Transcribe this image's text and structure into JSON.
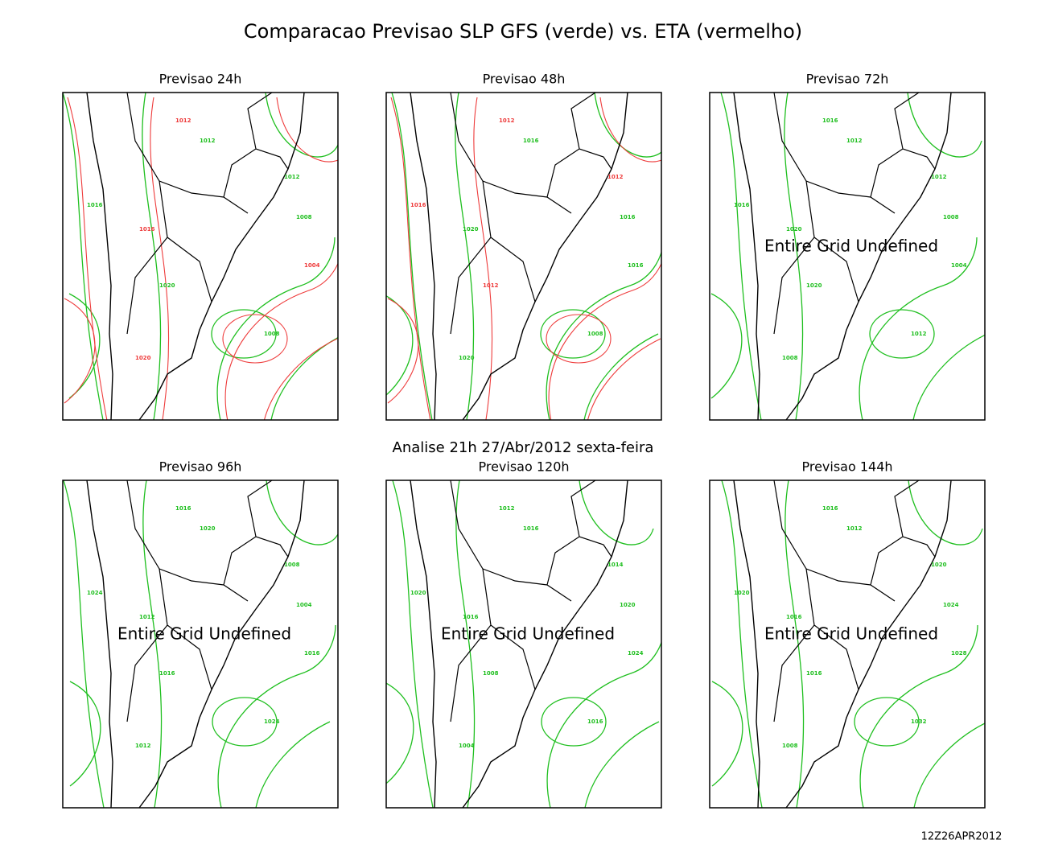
{
  "title": "Comparacao Previsao SLP GFS (verde) vs. ETA (vermelho)",
  "analysis": "Analise 21h 27/Abr/2012 sexta-feira",
  "footer": "12Z26APR2012",
  "panels": [
    {
      "title": "Previsao 24h",
      "contour_labels": [
        {
          "text": 1012,
          "color": "red"
        },
        {
          "text": 1012,
          "color": "green"
        },
        {
          "text": 1016,
          "color": "green"
        },
        {
          "text": 1016,
          "color": "red"
        },
        {
          "text": 1012,
          "color": "green"
        },
        {
          "text": 1008,
          "color": "green"
        },
        {
          "text": 1004,
          "color": "red"
        },
        {
          "text": 1008,
          "color": "green"
        },
        {
          "text": 1020,
          "color": "green"
        },
        {
          "text": 1020,
          "color": "red"
        }
      ]
    },
    {
      "title": "Previsao 48h",
      "contour_labels": [
        {
          "text": 1012,
          "color": "red"
        },
        {
          "text": 1016,
          "color": "green"
        },
        {
          "text": 1016,
          "color": "red"
        },
        {
          "text": 1020,
          "color": "green"
        },
        {
          "text": 1012,
          "color": "red"
        },
        {
          "text": 1016,
          "color": "green"
        },
        {
          "text": 1016,
          "color": "green"
        },
        {
          "text": 1008,
          "color": "green"
        },
        {
          "text": 1012,
          "color": "red"
        },
        {
          "text": 1020,
          "color": "green"
        }
      ]
    },
    {
      "title": "Previsao 72h",
      "message": "Entire Grid Undefined",
      "contour_labels": [
        {
          "text": 1016,
          "color": "green"
        },
        {
          "text": 1012,
          "color": "green"
        },
        {
          "text": 1016,
          "color": "green"
        },
        {
          "text": 1020,
          "color": "green"
        },
        {
          "text": 1012,
          "color": "green"
        },
        {
          "text": 1008,
          "color": "green"
        },
        {
          "text": 1004,
          "color": "green"
        },
        {
          "text": 1012,
          "color": "green"
        },
        {
          "text": 1020,
          "color": "green"
        },
        {
          "text": 1008,
          "color": "green"
        }
      ]
    },
    {
      "title": "Previsao 96h",
      "message": "Entire Grid Undefined",
      "contour_labels": [
        {
          "text": 1016,
          "color": "green"
        },
        {
          "text": 1020,
          "color": "green"
        },
        {
          "text": 1024,
          "color": "green"
        },
        {
          "text": 1012,
          "color": "green"
        },
        {
          "text": 1008,
          "color": "green"
        },
        {
          "text": 1004,
          "color": "green"
        },
        {
          "text": 1016,
          "color": "green"
        },
        {
          "text": 1024,
          "color": "green"
        },
        {
          "text": 1016,
          "color": "green"
        },
        {
          "text": 1012,
          "color": "green"
        }
      ]
    },
    {
      "title": "Previsao 120h",
      "message": "Entire Grid Undefined",
      "contour_labels": [
        {
          "text": 1012,
          "color": "green"
        },
        {
          "text": 1016,
          "color": "green"
        },
        {
          "text": 1020,
          "color": "green"
        },
        {
          "text": 1016,
          "color": "green"
        },
        {
          "text": 1014,
          "color": "green"
        },
        {
          "text": 1020,
          "color": "green"
        },
        {
          "text": 1024,
          "color": "green"
        },
        {
          "text": 1016,
          "color": "green"
        },
        {
          "text": 1008,
          "color": "green"
        },
        {
          "text": 1004,
          "color": "green"
        }
      ]
    },
    {
      "title": "Previsao 144h",
      "message": "Entire Grid Undefined",
      "contour_labels": [
        {
          "text": 1016,
          "color": "green"
        },
        {
          "text": 1012,
          "color": "green"
        },
        {
          "text": 1020,
          "color": "green"
        },
        {
          "text": 1016,
          "color": "green"
        },
        {
          "text": 1020,
          "color": "green"
        },
        {
          "text": 1024,
          "color": "green"
        },
        {
          "text": 1028,
          "color": "green"
        },
        {
          "text": 1032,
          "color": "green"
        },
        {
          "text": 1016,
          "color": "green"
        },
        {
          "text": 1008,
          "color": "green"
        }
      ]
    }
  ]
}
